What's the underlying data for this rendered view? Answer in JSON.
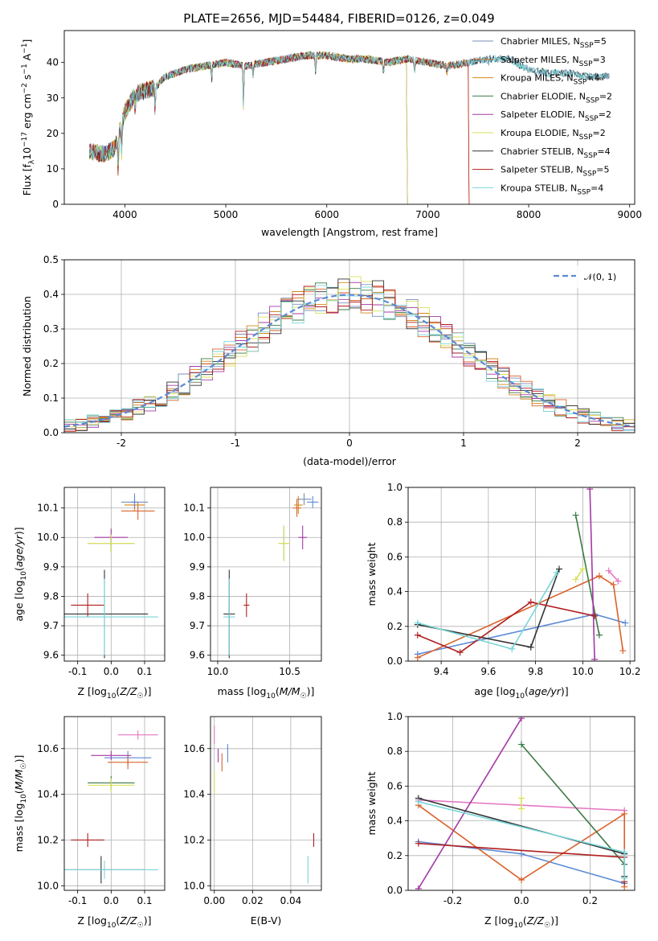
{
  "figure_title": "PLATE=2656, MJD=54484, FIBERID=0126, z=0.049",
  "colors": {
    "Chabrier MILES": "#7a8fb8",
    "Salpeter MILES": "#d9622b",
    "Kroupa MILES": "#d4881c",
    "Chabrier ELODIE": "#3d7a46",
    "Salpeter ELODIE": "#a33aa6",
    "Kroupa ELODIE": "#d8e05a",
    "Chabrier STELIB": "#333333",
    "Salpeter STELIB": "#b01f1f",
    "Kroupa STELIB": "#79d6d9",
    "normal": "#5b8ad6"
  },
  "chart_data": [
    {
      "id": "spectrum",
      "type": "line",
      "xlabel": "wavelength [Angstrom, rest frame]",
      "ylabel": "Flux [fλ10⁻¹⁷ erg cm⁻² s⁻¹ A⁻¹]",
      "xlim": [
        3400,
        9050
      ],
      "ylim": [
        0,
        49
      ],
      "xticks": [
        4000,
        5000,
        6000,
        7000,
        8000,
        9000
      ],
      "yticks": [
        0,
        10,
        20,
        30,
        40
      ],
      "legend_position": "top-right",
      "data_range": [
        3650,
        8800
      ],
      "profile": [
        [
          3650,
          15
        ],
        [
          3800,
          14
        ],
        [
          3900,
          16
        ],
        [
          4000,
          26
        ],
        [
          4100,
          31
        ],
        [
          4200,
          32
        ],
        [
          4300,
          33
        ],
        [
          4400,
          36
        ],
        [
          4500,
          37
        ],
        [
          4600,
          38
        ],
        [
          4800,
          39
        ],
        [
          5000,
          40
        ],
        [
          5200,
          39
        ],
        [
          5400,
          40
        ],
        [
          5600,
          41
        ],
        [
          5800,
          42
        ],
        [
          6000,
          42
        ],
        [
          6200,
          41
        ],
        [
          6400,
          41
        ],
        [
          6600,
          40
        ],
        [
          6800,
          41
        ],
        [
          7000,
          40
        ],
        [
          7200,
          39
        ],
        [
          7400,
          40
        ],
        [
          7600,
          41
        ],
        [
          7800,
          41
        ],
        [
          8000,
          38
        ],
        [
          8200,
          37
        ],
        [
          8400,
          37
        ],
        [
          8600,
          36
        ],
        [
          8800,
          36
        ]
      ],
      "features": [
        [
          3934,
          -10
        ],
        [
          3968,
          -8
        ],
        [
          4101,
          -4
        ],
        [
          4300,
          -6
        ],
        [
          4861,
          -4
        ],
        [
          5175,
          -12
        ],
        [
          5270,
          -4
        ],
        [
          5890,
          -5
        ],
        [
          6563,
          -3
        ],
        [
          6870,
          -3
        ],
        [
          7190,
          -2
        ],
        [
          7600,
          -2
        ]
      ],
      "series": [
        {
          "name": "Chabrier MILES, N_SSP=5",
          "label": "Chabrier MILES, N",
          "sub": "SSP",
          "suffix": "=5",
          "key": "Chabrier MILES",
          "end": 8800,
          "drop": null,
          "seed": 1
        },
        {
          "name": "Salpeter MILES, N_SSP=3",
          "label": "Salpeter MILES, N",
          "sub": "SSP",
          "suffix": "=3",
          "key": "Salpeter MILES",
          "end": 7400,
          "drop": 7410,
          "seed": 2
        },
        {
          "name": "Kroupa MILES, N_SSP=4",
          "label": "Kroupa MILES, N",
          "sub": "SSP",
          "suffix": "=4",
          "key": "Kroupa MILES",
          "end": 7400,
          "drop": 7410,
          "seed": 3
        },
        {
          "name": "Chabrier ELODIE, N_SSP=2",
          "label": "Chabrier ELODIE, N",
          "sub": "SSP",
          "suffix": "=2",
          "key": "Chabrier ELODIE",
          "end": 6790,
          "drop": 6800,
          "seed": 4
        },
        {
          "name": "Salpeter ELODIE, N_SSP=2",
          "label": "Salpeter ELODIE, N",
          "sub": "SSP",
          "suffix": "=2",
          "key": "Salpeter ELODIE",
          "end": 6790,
          "drop": 6800,
          "seed": 5
        },
        {
          "name": "Kroupa ELODIE, N_SSP=2",
          "label": "Kroupa ELODIE, N",
          "sub": "SSP",
          "suffix": "=2",
          "key": "Kroupa ELODIE",
          "end": 6790,
          "drop": 6800,
          "seed": 6
        },
        {
          "name": "Chabrier STELIB, N_SSP=4",
          "label": "Chabrier STELIB, N",
          "sub": "SSP",
          "suffix": "=4",
          "key": "Chabrier STELIB",
          "end": 8800,
          "drop": null,
          "seed": 7
        },
        {
          "name": "Salpeter STELIB, N_SSP=5",
          "label": "Salpeter STELIB, N",
          "sub": "SSP",
          "suffix": "=5",
          "key": "Salpeter STELIB",
          "end": 7400,
          "drop": 7410,
          "seed": 8
        },
        {
          "name": "Kroupa STELIB, N_SSP=4",
          "label": "Kroupa STELIB, N",
          "sub": "SSP",
          "suffix": "=4",
          "key": "Kroupa STELIB",
          "end": 8800,
          "drop": null,
          "seed": 9
        }
      ]
    },
    {
      "id": "residuals",
      "type": "line",
      "xlabel": "(data-model)/error",
      "ylabel": "Normed distribution",
      "xlim": [
        -2.5,
        2.5
      ],
      "ylim": [
        0,
        0.5
      ],
      "xticks": [
        -2,
        -1,
        0,
        1,
        2
      ],
      "yticks": [
        0.0,
        0.1,
        0.2,
        0.3,
        0.4,
        0.5
      ],
      "grid": true,
      "legend_position": "top-right",
      "normal_label": "𝒩(0, 1)",
      "bin_width": 0.1,
      "histogram_series": [
        "Chabrier MILES",
        "Salpeter MILES",
        "Kroupa MILES",
        "Chabrier ELODIE",
        "Salpeter ELODIE",
        "Kroupa ELODIE",
        "Chabrier STELIB",
        "Salpeter STELIB",
        "Kroupa STELIB"
      ]
    },
    {
      "id": "age-vs-Z",
      "type": "scatter",
      "xlabel": "Z [log10(Z/Z☉)]",
      "ylabel": "age [log10(age/yr)]",
      "xlim": [
        -0.14,
        0.16
      ],
      "ylim": [
        9.58,
        10.17
      ],
      "xticks": [
        -0.1,
        0.0,
        0.1
      ],
      "yticks": [
        9.6,
        9.7,
        9.8,
        9.9,
        10.0,
        10.1
      ],
      "grid": true,
      "points": [
        {
          "key": "Chabrier MILES",
          "x": 0.07,
          "y": 10.12,
          "xerr": 0.04,
          "yerr": 0.03
        },
        {
          "key": "Salpeter MILES",
          "x": 0.08,
          "y": 10.09,
          "xerr": 0.05,
          "yerr": 0.03
        },
        {
          "key": "Kroupa MILES",
          "x": 0.07,
          "y": 10.11,
          "xerr": 0.03,
          "yerr": 0.02
        },
        {
          "key": "Chabrier ELODIE",
          "x": 0.0,
          "y": 9.98,
          "xerr": 0.07,
          "yerr": 0.03
        },
        {
          "key": "Salpeter ELODIE",
          "x": 0.0,
          "y": 10.0,
          "xerr": 0.05,
          "yerr": 0.03
        },
        {
          "key": "Kroupa ELODIE",
          "x": 0.0,
          "y": 9.98,
          "xerr": 0.07,
          "yerr": 0.03
        },
        {
          "key": "Chabrier STELIB",
          "x": -0.02,
          "y": 9.74,
          "xerr": 0.13,
          "yerr": 0.15
        },
        {
          "key": "Salpeter STELIB",
          "x": -0.07,
          "y": 9.77,
          "xerr": 0.05,
          "yerr": 0.04
        },
        {
          "key": "Kroupa STELIB",
          "x": -0.02,
          "y": 9.73,
          "xerr": 0.16,
          "yerr": 0.13
        },
        {
          "key": "normal",
          "x": 0.07,
          "y": 10.12,
          "xerr": 0.01,
          "yerr": 0.02
        }
      ]
    },
    {
      "id": "age-vs-mass",
      "type": "scatter",
      "xlabel": "mass [log10(M/M☉)]",
      "xlim": [
        9.95,
        10.72
      ],
      "ylim": [
        9.58,
        10.17
      ],
      "xticks": [
        10.0,
        10.5
      ],
      "yticks": [
        9.6,
        9.7,
        9.8,
        9.9,
        10.0,
        10.1
      ],
      "grid": true,
      "points": [
        {
          "key": "Chabrier MILES",
          "x": 10.6,
          "y": 10.13,
          "xerr": 0.05,
          "yerr": 0.02
        },
        {
          "key": "Salpeter MILES",
          "x": 10.55,
          "y": 10.1,
          "xerr": 0.03,
          "yerr": 0.03
        },
        {
          "key": "Kroupa MILES",
          "x": 10.56,
          "y": 10.11,
          "xerr": 0.03,
          "yerr": 0.03
        },
        {
          "key": "Chabrier ELODIE",
          "x": 10.46,
          "y": 9.98,
          "xerr": 0.03,
          "yerr": 0.06
        },
        {
          "key": "Salpeter ELODIE",
          "x": 10.59,
          "y": 10.0,
          "xerr": 0.03,
          "yerr": 0.04
        },
        {
          "key": "Kroupa ELODIE",
          "x": 10.46,
          "y": 9.98,
          "xerr": 0.04,
          "yerr": 0.06
        },
        {
          "key": "Chabrier STELIB",
          "x": 10.08,
          "y": 9.74,
          "xerr": 0.04,
          "yerr": 0.15
        },
        {
          "key": "Salpeter STELIB",
          "x": 10.2,
          "y": 9.77,
          "xerr": 0.02,
          "yerr": 0.04
        },
        {
          "key": "Kroupa STELIB",
          "x": 10.08,
          "y": 9.73,
          "xerr": 0.04,
          "yerr": 0.13
        },
        {
          "key": "normal",
          "x": 10.66,
          "y": 10.12,
          "xerr": 0.04,
          "yerr": 0.02
        }
      ]
    },
    {
      "id": "weight-vs-age",
      "type": "line",
      "xlabel": "age [log10(age/yr)]",
      "ylabel": "mass weight",
      "xlim": [
        9.26,
        10.22
      ],
      "ylim": [
        0,
        1.0
      ],
      "xticks": [
        9.4,
        9.6,
        9.8,
        10.0,
        10.2
      ],
      "yticks": [
        0.0,
        0.2,
        0.4,
        0.6,
        0.8,
        1.0
      ],
      "grid": true,
      "series": [
        {
          "key": "normal",
          "x": [
            9.3,
            10.05,
            10.18
          ],
          "y": [
            0.04,
            0.27,
            0.22
          ]
        },
        {
          "key": "Salpeter MILES",
          "x": [
            9.3,
            10.07,
            10.13,
            10.17
          ],
          "y": [
            0.02,
            0.49,
            0.44,
            0.06
          ]
        },
        {
          "key": "Chabrier ELODIE",
          "x": [
            9.97,
            10.07
          ],
          "y": [
            0.84,
            0.15
          ]
        },
        {
          "key": "Salpeter ELODIE",
          "x": [
            10.03,
            10.05
          ],
          "y": [
            0.99,
            0.01
          ]
        },
        {
          "key": "Kroupa ELODIE",
          "x": [
            9.97,
            10.0
          ],
          "y": [
            0.47,
            0.53
          ]
        },
        {
          "key": "Chabrier STELIB",
          "x": [
            9.3,
            9.78,
            9.9
          ],
          "y": [
            0.21,
            0.08,
            0.53
          ]
        },
        {
          "key": "Salpeter STELIB",
          "x": [
            9.3,
            9.48,
            9.78,
            10.05
          ],
          "y": [
            0.15,
            0.05,
            0.34,
            0.26
          ]
        },
        {
          "key": "Kroupa STELIB",
          "x": [
            9.3,
            9.7,
            9.89
          ],
          "y": [
            0.22,
            0.07,
            0.51
          ]
        },
        {
          "key": "hotpink",
          "x": [
            10.11,
            10.15
          ],
          "y": [
            0.52,
            0.46
          ]
        }
      ]
    },
    {
      "id": "mass-vs-Z",
      "type": "scatter",
      "xlabel": "Z [log10(Z/Z☉)]",
      "ylabel": "mass [log10(M/M☉)]",
      "xlim": [
        -0.14,
        0.16
      ],
      "ylim": [
        9.98,
        10.74
      ],
      "xticks": [
        -0.1,
        0.0,
        0.1
      ],
      "yticks": [
        10.0,
        10.2,
        10.4,
        10.6
      ],
      "grid": true,
      "points": [
        {
          "key": "hotpink",
          "x": 0.08,
          "y": 10.66,
          "xerr": 0.06,
          "yerr": 0.02
        },
        {
          "key": "normal",
          "x": 0.05,
          "y": 10.56,
          "xerr": 0.07,
          "yerr": 0.03
        },
        {
          "key": "Salpeter MILES",
          "x": 0.05,
          "y": 10.54,
          "xerr": 0.06,
          "yerr": 0.03
        },
        {
          "key": "Salpeter ELODIE",
          "x": 0.0,
          "y": 10.57,
          "xerr": 0.06,
          "yerr": 0.02
        },
        {
          "key": "Chabrier ELODIE",
          "x": 0.0,
          "y": 10.45,
          "xerr": 0.07,
          "yerr": 0.03
        },
        {
          "key": "Kroupa ELODIE",
          "x": 0.0,
          "y": 10.44,
          "xerr": 0.07,
          "yerr": 0.03
        },
        {
          "key": "Salpeter STELIB",
          "x": -0.07,
          "y": 10.2,
          "xerr": 0.05,
          "yerr": 0.03
        },
        {
          "key": "Chabrier STELIB",
          "x": -0.03,
          "y": 10.07,
          "xerr": 0.13,
          "yerr": 0.06
        },
        {
          "key": "Kroupa STELIB",
          "x": -0.02,
          "y": 10.07,
          "xerr": 0.16,
          "yerr": 0.04
        }
      ]
    },
    {
      "id": "mass-vs-EBV",
      "type": "scatter",
      "xlabel": "E(B-V)",
      "xlim": [
        -0.002,
        0.056
      ],
      "ylim": [
        9.98,
        10.74
      ],
      "xticks": [
        0.0,
        0.02,
        0.04
      ],
      "yticks": [
        10.0,
        10.2,
        10.4,
        10.6
      ],
      "grid": true,
      "points": [
        {
          "key": "hotpink",
          "x": 0.0,
          "y": 10.66,
          "xerr": 0,
          "yerr": 0.04
        },
        {
          "key": "normal",
          "x": 0.007,
          "y": 10.58,
          "xerr": 0,
          "yerr": 0.04
        },
        {
          "key": "Salpeter MILES",
          "x": 0.004,
          "y": 10.54,
          "xerr": 0,
          "yerr": 0.04
        },
        {
          "key": "Salpeter ELODIE",
          "x": 0.002,
          "y": 10.57,
          "xerr": 0,
          "yerr": 0.03
        },
        {
          "key": "Kroupa ELODIE",
          "x": 0.0,
          "y": 10.45,
          "xerr": 0,
          "yerr": 0.05
        },
        {
          "key": "Salpeter STELIB",
          "x": 0.052,
          "y": 10.2,
          "xerr": 0,
          "yerr": 0.03
        },
        {
          "key": "Kroupa STELIB",
          "x": 0.049,
          "y": 10.07,
          "xerr": 0,
          "yerr": 0.06
        }
      ]
    },
    {
      "id": "weight-vs-Z",
      "type": "line",
      "xlabel": "Z [log10(Z/Z☉)]",
      "ylabel": "mass weight",
      "xlim": [
        -0.33,
        0.33
      ],
      "ylim": [
        0,
        1.0
      ],
      "xticks": [
        -0.2,
        0.0,
        0.2
      ],
      "yticks": [
        0.0,
        0.2,
        0.4,
        0.6,
        0.8,
        1.0
      ],
      "grid": true,
      "series": [
        {
          "key": "hotpink",
          "x": [
            -0.3,
            0.3
          ],
          "y": [
            0.52,
            0.46
          ]
        },
        {
          "key": "normal",
          "x": [
            -0.3,
            0.0,
            0.3
          ],
          "y": [
            0.28,
            0.21,
            0.04
          ]
        },
        {
          "key": "Salpeter MILES",
          "x": [
            -0.3,
            0.0,
            0.3,
            0.3
          ],
          "y": [
            0.49,
            0.06,
            0.44,
            0.02
          ]
        },
        {
          "key": "Chabrier ELODIE",
          "x": [
            0.0,
            0.3
          ],
          "y": [
            0.84,
            0.15
          ]
        },
        {
          "key": "Salpeter ELODIE",
          "x": [
            -0.3,
            0.0
          ],
          "y": [
            0.01,
            0.99
          ]
        },
        {
          "key": "Kroupa ELODIE",
          "x": [
            0.0,
            0.0
          ],
          "y": [
            0.47,
            0.53
          ]
        },
        {
          "key": "Chabrier STELIB",
          "x": [
            -0.3,
            0.3,
            0.3
          ],
          "y": [
            0.53,
            0.21,
            0.08
          ]
        },
        {
          "key": "Salpeter STELIB",
          "x": [
            -0.3,
            0.3,
            0.3
          ],
          "y": [
            0.27,
            0.19,
            0.05
          ]
        },
        {
          "key": "Kroupa STELIB",
          "x": [
            -0.3,
            0.3,
            0.3
          ],
          "y": [
            0.51,
            0.22,
            0.07
          ]
        }
      ]
    }
  ]
}
